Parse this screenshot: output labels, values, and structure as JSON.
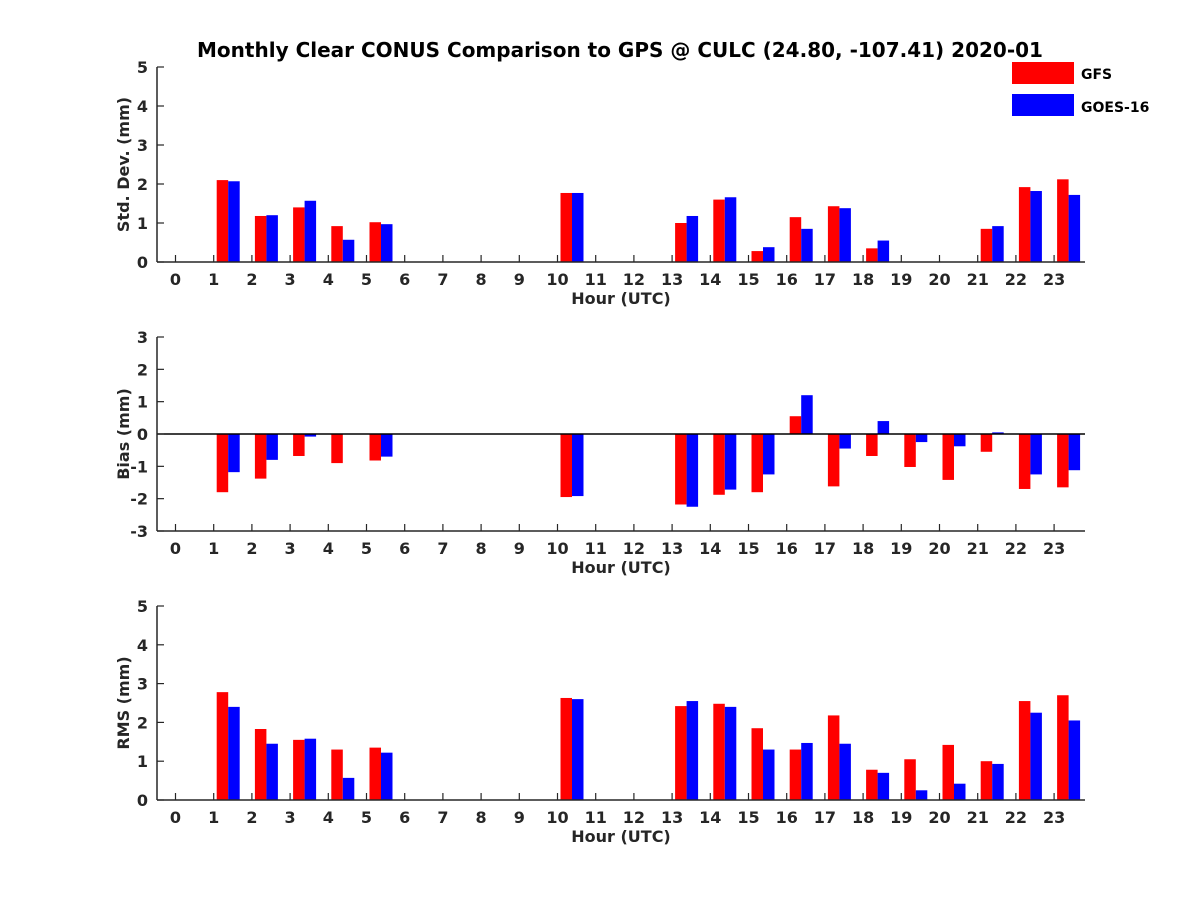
{
  "figure_title": "Monthly Clear CONUS Comparison to GPS @ CULC (24.80, -107.41) 2020-01",
  "legend": [
    {
      "label": "GFS",
      "color": "#ff0000"
    },
    {
      "label": "GOES-16",
      "color": "#0000ff"
    }
  ],
  "chart_data": [
    {
      "type": "bar",
      "ylabel": "Std. Dev. (mm)",
      "xlabel": "Hour (UTC)",
      "categories": [
        "0",
        "1",
        "2",
        "3",
        "4",
        "5",
        "6",
        "7",
        "8",
        "9",
        "10",
        "11",
        "12",
        "13",
        "14",
        "15",
        "16",
        "17",
        "18",
        "19",
        "20",
        "21",
        "22",
        "23"
      ],
      "ylim": [
        0,
        5
      ],
      "yticks": [
        0,
        1,
        2,
        3,
        4,
        5
      ],
      "series": [
        {
          "name": "GFS",
          "color": "#ff0000",
          "values": [
            null,
            2.1,
            1.18,
            1.4,
            0.92,
            1.02,
            null,
            null,
            null,
            null,
            1.77,
            null,
            null,
            1.0,
            1.6,
            0.28,
            1.15,
            1.43,
            0.35,
            null,
            null,
            0.85,
            1.92,
            2.12
          ]
        },
        {
          "name": "GOES-16",
          "color": "#0000ff",
          "values": [
            null,
            2.07,
            1.2,
            1.57,
            0.57,
            0.97,
            null,
            null,
            null,
            null,
            1.77,
            null,
            null,
            1.18,
            1.66,
            0.38,
            0.85,
            1.38,
            0.55,
            null,
            null,
            0.92,
            1.82,
            1.72
          ]
        }
      ]
    },
    {
      "type": "bar",
      "ylabel": "Bias (mm)",
      "xlabel": "Hour (UTC)",
      "categories": [
        "0",
        "1",
        "2",
        "3",
        "4",
        "5",
        "6",
        "7",
        "8",
        "9",
        "10",
        "11",
        "12",
        "13",
        "14",
        "15",
        "16",
        "17",
        "18",
        "19",
        "20",
        "21",
        "22",
        "23"
      ],
      "ylim": [
        -3,
        3
      ],
      "yticks": [
        -3,
        -2,
        -1,
        0,
        1,
        2,
        3
      ],
      "zero_line": true,
      "series": [
        {
          "name": "GFS",
          "color": "#ff0000",
          "values": [
            null,
            -1.8,
            -1.38,
            -0.68,
            -0.9,
            -0.82,
            null,
            null,
            null,
            null,
            -1.95,
            null,
            null,
            -2.18,
            -1.88,
            -1.8,
            0.55,
            -1.62,
            -0.68,
            -1.02,
            -1.42,
            -0.55,
            -1.7,
            -1.65
          ]
        },
        {
          "name": "GOES-16",
          "color": "#0000ff",
          "values": [
            null,
            -1.18,
            -0.8,
            -0.08,
            null,
            -0.7,
            null,
            null,
            null,
            null,
            -1.92,
            null,
            null,
            -2.25,
            -1.72,
            -1.25,
            1.2,
            -0.45,
            0.4,
            -0.25,
            -0.38,
            0.05,
            -1.25,
            -1.12
          ]
        }
      ]
    },
    {
      "type": "bar",
      "ylabel": "RMS (mm)",
      "xlabel": "Hour (UTC)",
      "categories": [
        "0",
        "1",
        "2",
        "3",
        "4",
        "5",
        "6",
        "7",
        "8",
        "9",
        "10",
        "11",
        "12",
        "13",
        "14",
        "15",
        "16",
        "17",
        "18",
        "19",
        "20",
        "21",
        "22",
        "23"
      ],
      "ylim": [
        0,
        5
      ],
      "yticks": [
        0,
        1,
        2,
        3,
        4,
        5
      ],
      "series": [
        {
          "name": "GFS",
          "color": "#ff0000",
          "values": [
            null,
            2.78,
            1.83,
            1.55,
            1.3,
            1.35,
            null,
            null,
            null,
            null,
            2.63,
            null,
            null,
            2.42,
            2.48,
            1.85,
            1.3,
            2.18,
            0.78,
            1.05,
            1.42,
            1.0,
            2.55,
            2.7
          ]
        },
        {
          "name": "GOES-16",
          "color": "#0000ff",
          "values": [
            null,
            2.4,
            1.45,
            1.58,
            0.57,
            1.22,
            null,
            null,
            null,
            null,
            2.6,
            null,
            null,
            2.55,
            2.4,
            1.3,
            1.47,
            1.45,
            0.7,
            0.25,
            0.42,
            0.93,
            2.25,
            2.05
          ]
        }
      ]
    }
  ]
}
